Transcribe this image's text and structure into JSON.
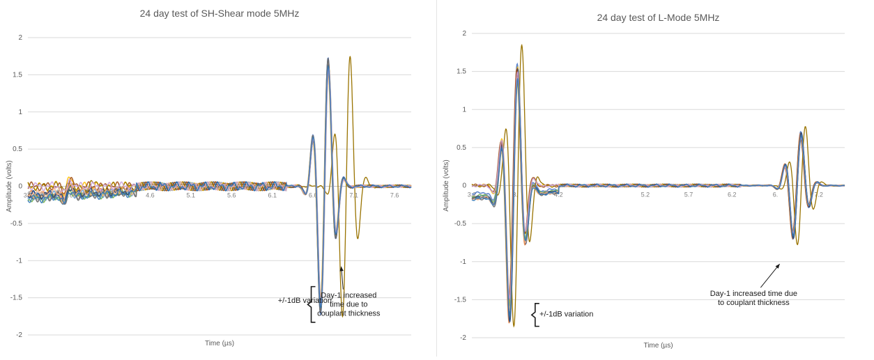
{
  "charts": [
    {
      "type": "line",
      "title": "24 day test of SH-Shear mode 5MHz",
      "xlabel": "Time (µs)",
      "ylabel": "Amplitude (volts)",
      "xlim": [
        3.2,
        7.8
      ],
      "ylim": [
        -2,
        2
      ],
      "yticks": [
        2,
        1.5,
        1,
        0.5,
        0,
        -0.5,
        -1,
        -1.5,
        -2
      ],
      "ytick_labels": [
        "2",
        "1.5",
        "1",
        "0.5",
        "0",
        "-0.5",
        "-1",
        "-1.5",
        "-2"
      ],
      "xtick_labels": [
        "3.2",
        "3.6",
        "4.1",
        "4.6",
        "5.1",
        "5.6",
        "6.1",
        "6.6",
        "7.1",
        "7.6"
      ],
      "grid": "horizontal",
      "series_colors": [
        "#4472c4",
        "#ed7d31",
        "#a5a5a5",
        "#ffc000",
        "#5b9bd5",
        "#70ad47",
        "#264478",
        "#9e480e",
        "#636363",
        "#997300",
        "#f4b183",
        "#c9a0dc",
        "#2e75b6"
      ],
      "waveform": {
        "noise_level": 0.06,
        "early_offset": -0.17,
        "early_offset_end": 4.5,
        "bursts": [
          {
            "t": 3.67,
            "amp": 0.13,
            "freq": 5,
            "width": 0.12
          },
          {
            "t": 6.76,
            "amp": 1.88,
            "freq": 5,
            "width": 0.2
          }
        ],
        "day1_outlier": {
          "shift_x": 0.26,
          "amp_scale": 1.02
        }
      },
      "annotations": [
        {
          "text": [
            "+/-1dB variation"
          ],
          "x": 6.2,
          "y": -1.57
        },
        {
          "text": [
            "Day-1 increased",
            "time due to",
            "couplant thickness"
          ],
          "x": 7.05,
          "y": -1.5,
          "arrow_to": [
            6.96,
            -1.08
          ]
        }
      ],
      "bracket": {
        "x": 6.6,
        "y_top": -1.35,
        "y_bottom": -1.83
      }
    },
    {
      "type": "line",
      "title": "24 day test of L-Mode 5MHz",
      "xlabel": "Time (µs)",
      "ylabel": "Amplitude (volts)",
      "xlim": [
        3.2,
        7.5
      ],
      "ylim": [
        -2,
        2
      ],
      "yticks": [
        2,
        1.5,
        1,
        0.5,
        0,
        -0.5,
        -1,
        -1.5,
        -2
      ],
      "ytick_labels": [
        "2",
        "1.5",
        "1",
        "0.5",
        "0",
        "-0.5",
        "-1",
        "-1.5",
        "-2"
      ],
      "xtick_labels": [
        "3.2",
        "3.",
        "4.2",
        "5.2",
        "5.7",
        "6.2",
        "6.",
        "7.2"
      ],
      "xtick_positions": [
        3.2,
        3.7,
        4.2,
        5.2,
        5.7,
        6.2,
        6.7,
        7.2
      ],
      "grid": "horizontal",
      "series_colors": [
        "#4472c4",
        "#ed7d31",
        "#a5a5a5",
        "#ffc000",
        "#5b9bd5",
        "#70ad47",
        "#264478",
        "#9e480e",
        "#636363",
        "#997300",
        "#f4b183",
        "#c9a0dc",
        "#2e75b6"
      ],
      "waveform": {
        "noise_level": 0.02,
        "early_offset": -0.17,
        "early_offset_end": 4.2,
        "bursts": [
          {
            "t": 3.68,
            "amp": 1.8,
            "freq": 5,
            "width": 0.2
          },
          {
            "t": 6.95,
            "amp": 0.75,
            "freq": 5,
            "width": 0.2
          }
        ],
        "day1_outlier": {
          "shift_x": 0.05,
          "amp_scale": 1.12
        }
      },
      "annotations": [
        {
          "text": [
            "+/-1dB variation"
          ],
          "x": 3.98,
          "y": -1.72
        },
        {
          "text": [
            "Day-1 increased time due",
            "to couplant thickness"
          ],
          "x": 6.45,
          "y": -1.45,
          "arrow_to": [
            6.75,
            -1.03
          ]
        }
      ],
      "bracket": {
        "x": 3.93,
        "y_top": -1.55,
        "y_bottom": -1.85
      }
    }
  ]
}
